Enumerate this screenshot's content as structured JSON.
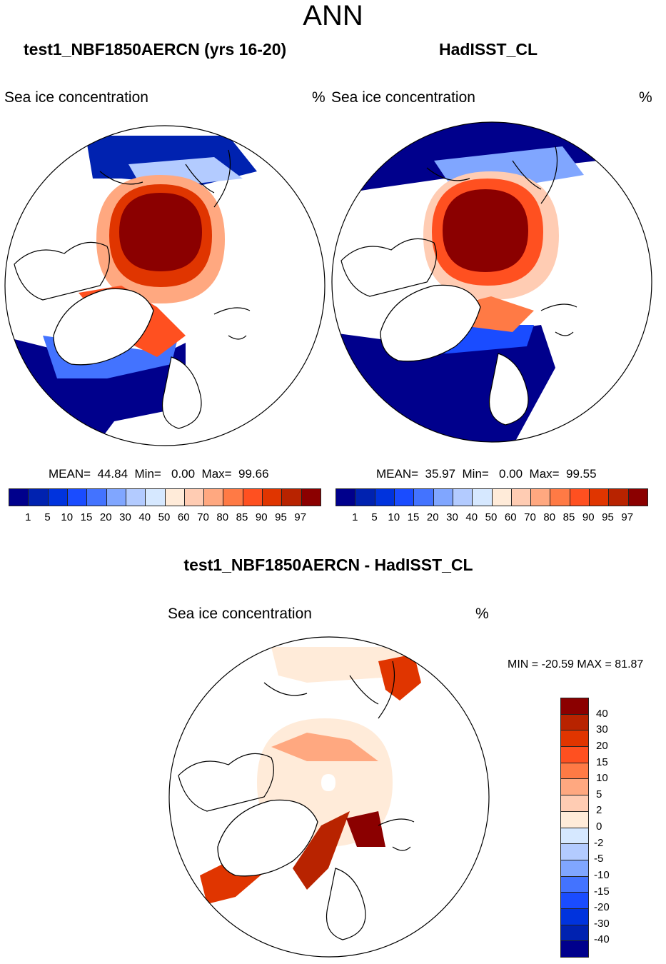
{
  "title": "ANN",
  "panels": [
    {
      "title": "test1_NBF1850AERCN (yrs 16-20)",
      "variable": "Sea ice concentration",
      "units": "%",
      "mean_label": "MEAN=",
      "mean": "44.84",
      "min_label": "Min=",
      "min": "0.00",
      "max_label": "Max=",
      "max": "99.66"
    },
    {
      "title": "HadISST_CL",
      "variable": "Sea ice concentration",
      "units": "%",
      "mean_label": "MEAN=",
      "mean": "35.97",
      "min_label": "Min=",
      "min": "0.00",
      "max_label": "Max=",
      "max": "99.55"
    }
  ],
  "colorbar": {
    "labels": [
      "1",
      "5",
      "10",
      "15",
      "20",
      "30",
      "40",
      "50",
      "60",
      "70",
      "80",
      "85",
      "90",
      "95",
      "97"
    ],
    "colors": [
      "#00008c",
      "#0022b0",
      "#0033dd",
      "#1a4cff",
      "#4373ff",
      "#80a6ff",
      "#b3cbff",
      "#d6e8ff",
      "#ffebd9",
      "#ffccb3",
      "#ffa880",
      "#ff7a45",
      "#ff5020",
      "#e03500",
      "#b82300",
      "#8b0000"
    ]
  },
  "diff": {
    "title": "test1_NBF1850AERCN - HadISST_CL",
    "variable": "Sea ice concentration",
    "units": "%",
    "minmax": "MIN = -20.59 MAX =  81.87",
    "labels": [
      "40",
      "30",
      "20",
      "15",
      "10",
      "5",
      "2",
      "0",
      "-2",
      "-5",
      "-10",
      "-15",
      "-20",
      "-30",
      "-40"
    ]
  }
}
